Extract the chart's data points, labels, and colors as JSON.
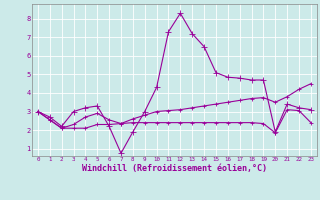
{
  "background_color": "#cceae9",
  "grid_color": "#ffffff",
  "line_color": "#990099",
  "xlabel": "Windchill (Refroidissement éolien,°C)",
  "xlabel_fontsize": 6,
  "xticks": [
    0,
    1,
    2,
    3,
    4,
    5,
    6,
    7,
    8,
    9,
    10,
    11,
    12,
    13,
    14,
    15,
    16,
    17,
    18,
    19,
    20,
    21,
    22,
    23
  ],
  "yticks": [
    1,
    2,
    3,
    4,
    5,
    6,
    7,
    8
  ],
  "ylim": [
    0.6,
    8.8
  ],
  "xlim": [
    -0.5,
    23.5
  ],
  "series": [
    {
      "x": [
        0,
        1,
        2,
        3,
        4,
        5,
        6,
        7,
        8,
        9,
        10,
        11,
        12,
        13,
        14,
        15,
        16,
        17,
        18,
        19,
        20,
        21,
        22,
        23
      ],
      "y": [
        3.0,
        2.7,
        2.2,
        3.0,
        3.2,
        3.3,
        2.2,
        0.75,
        1.9,
        3.0,
        4.3,
        7.3,
        8.3,
        7.2,
        6.5,
        5.1,
        4.85,
        4.8,
        4.7,
        4.7,
        1.9,
        3.4,
        3.2,
        3.1
      ],
      "marker": "+",
      "linewidth": 0.8,
      "markersize": 4
    },
    {
      "x": [
        0,
        1,
        2,
        3,
        4,
        5,
        6,
        7,
        8,
        9,
        10,
        11,
        12,
        13,
        14,
        15,
        16,
        17,
        18,
        19,
        20,
        21,
        22,
        23
      ],
      "y": [
        3.0,
        2.55,
        2.1,
        2.3,
        2.7,
        2.9,
        2.55,
        2.35,
        2.6,
        2.8,
        3.0,
        3.05,
        3.1,
        3.2,
        3.3,
        3.4,
        3.5,
        3.6,
        3.7,
        3.75,
        3.5,
        3.8,
        4.2,
        4.5
      ],
      "marker": "+",
      "linewidth": 0.8,
      "markersize": 3
    },
    {
      "x": [
        0,
        1,
        2,
        3,
        4,
        5,
        6,
        7,
        8,
        9,
        10,
        11,
        12,
        13,
        14,
        15,
        16,
        17,
        18,
        19,
        20,
        21,
        22,
        23
      ],
      "y": [
        3.0,
        2.55,
        2.1,
        2.1,
        2.1,
        2.3,
        2.3,
        2.35,
        2.4,
        2.4,
        2.4,
        2.4,
        2.4,
        2.4,
        2.4,
        2.4,
        2.4,
        2.4,
        2.4,
        2.35,
        1.85,
        3.1,
        3.05,
        2.4
      ],
      "marker": "+",
      "linewidth": 0.8,
      "markersize": 3
    }
  ]
}
